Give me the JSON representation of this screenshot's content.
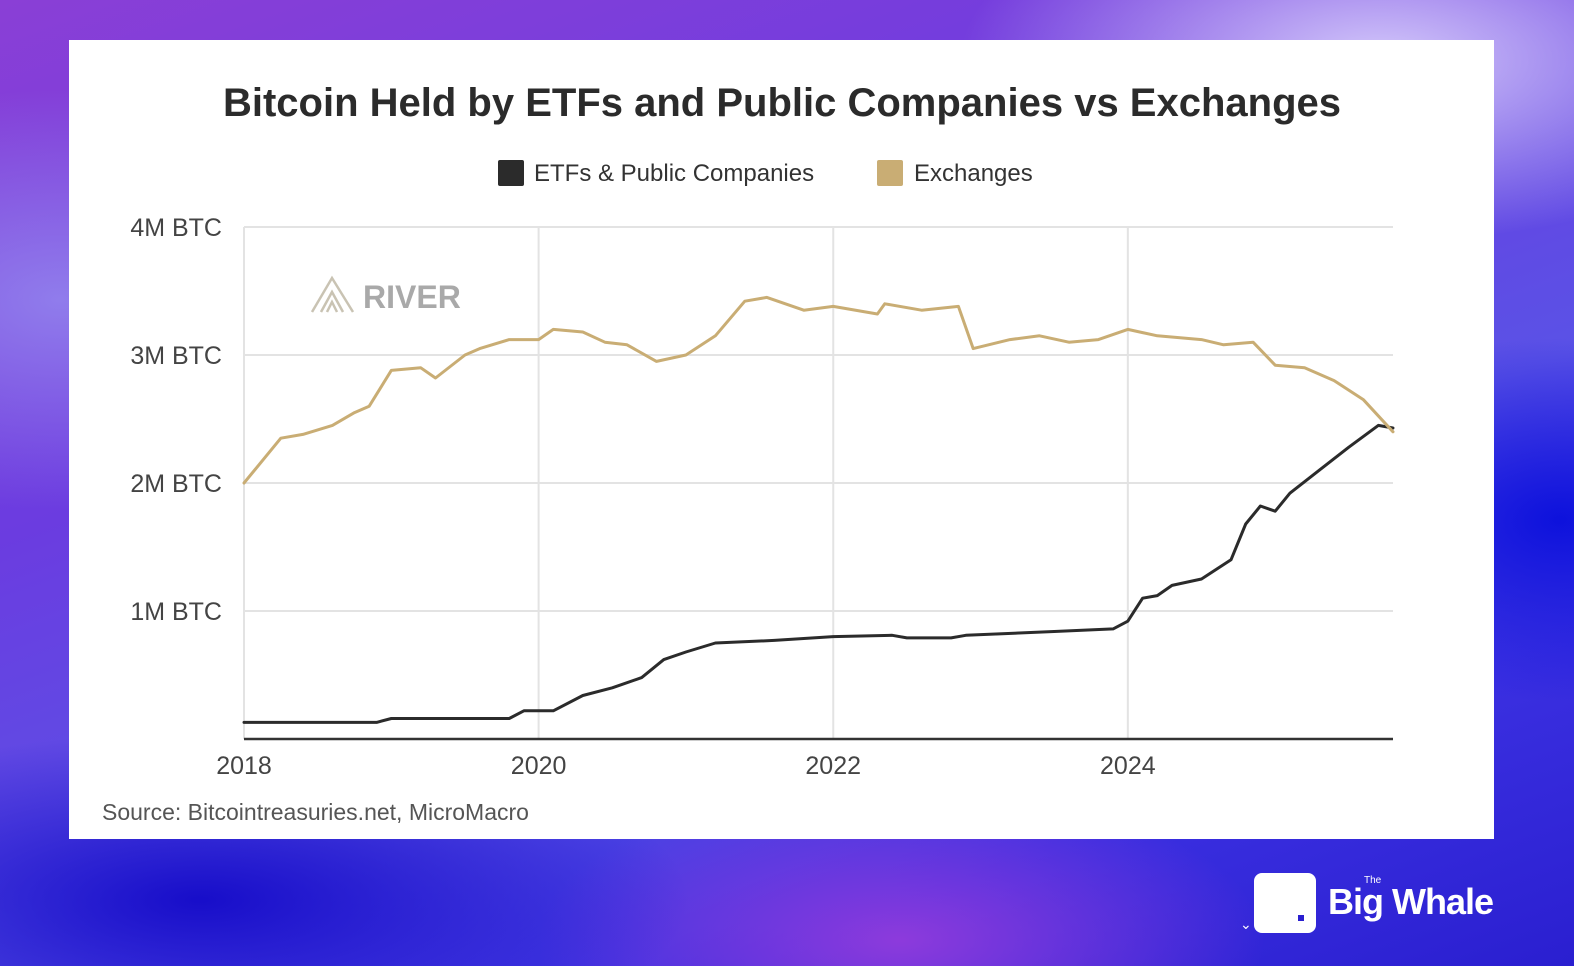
{
  "chart_data": {
    "type": "line",
    "title": "Bitcoin Held by ETFs and Public Companies vs Exchanges",
    "source": "Source: Bitcointreasuries.net, MicroMacro",
    "watermark": "RIVER",
    "y_tick_labels": [
      "1M BTC",
      "2M BTC",
      "3M BTC",
      "4M BTC"
    ],
    "y_ticks": [
      1,
      2,
      3,
      4
    ],
    "ylim": [
      0,
      4
    ],
    "x_tick_labels": [
      "2018",
      "2020",
      "2022",
      "2024"
    ],
    "x_ticks": [
      2018,
      2020,
      2022,
      2024
    ],
    "xlim": [
      2018,
      2025.8
    ],
    "series": [
      {
        "name": "ETFs & Public Companies",
        "color": "#2b2b2b",
        "x": [
          2018.0,
          2018.9,
          2019.0,
          2019.8,
          2019.9,
          2020.1,
          2020.3,
          2020.5,
          2020.7,
          2020.85,
          2021.0,
          2021.2,
          2021.6,
          2022.0,
          2022.4,
          2022.5,
          2022.8,
          2022.9,
          2023.5,
          2023.9,
          2024.0,
          2024.1,
          2024.2,
          2024.3,
          2024.5,
          2024.7,
          2024.8,
          2024.9,
          2025.0,
          2025.1,
          2025.3,
          2025.5,
          2025.7,
          2025.8
        ],
        "values": [
          0.13,
          0.13,
          0.16,
          0.16,
          0.22,
          0.22,
          0.34,
          0.4,
          0.48,
          0.62,
          0.68,
          0.75,
          0.77,
          0.8,
          0.81,
          0.79,
          0.79,
          0.81,
          0.84,
          0.86,
          0.92,
          1.1,
          1.12,
          1.2,
          1.25,
          1.4,
          1.68,
          1.82,
          1.78,
          1.92,
          2.1,
          2.28,
          2.45,
          2.43
        ]
      },
      {
        "name": "Exchanges",
        "color": "#c9ad74",
        "x": [
          2018.0,
          2018.25,
          2018.4,
          2018.6,
          2018.75,
          2018.85,
          2019.0,
          2019.2,
          2019.3,
          2019.5,
          2019.6,
          2019.8,
          2020.0,
          2020.1,
          2020.3,
          2020.45,
          2020.6,
          2020.8,
          2021.0,
          2021.2,
          2021.4,
          2021.55,
          2021.8,
          2022.0,
          2022.3,
          2022.35,
          2022.6,
          2022.85,
          2022.95,
          2023.2,
          2023.4,
          2023.6,
          2023.8,
          2024.0,
          2024.2,
          2024.5,
          2024.65,
          2024.85,
          2025.0,
          2025.2,
          2025.4,
          2025.6,
          2025.8
        ],
        "values": [
          2.0,
          2.35,
          2.38,
          2.45,
          2.55,
          2.6,
          2.88,
          2.9,
          2.82,
          3.0,
          3.05,
          3.12,
          3.12,
          3.2,
          3.18,
          3.1,
          3.08,
          2.95,
          3.0,
          3.15,
          3.42,
          3.45,
          3.35,
          3.38,
          3.32,
          3.4,
          3.35,
          3.38,
          3.05,
          3.12,
          3.15,
          3.1,
          3.12,
          3.2,
          3.15,
          3.12,
          3.08,
          3.1,
          2.92,
          2.9,
          2.8,
          2.65,
          2.4
        ]
      }
    ]
  },
  "brand": {
    "the": "The",
    "name": "Big Whale"
  }
}
